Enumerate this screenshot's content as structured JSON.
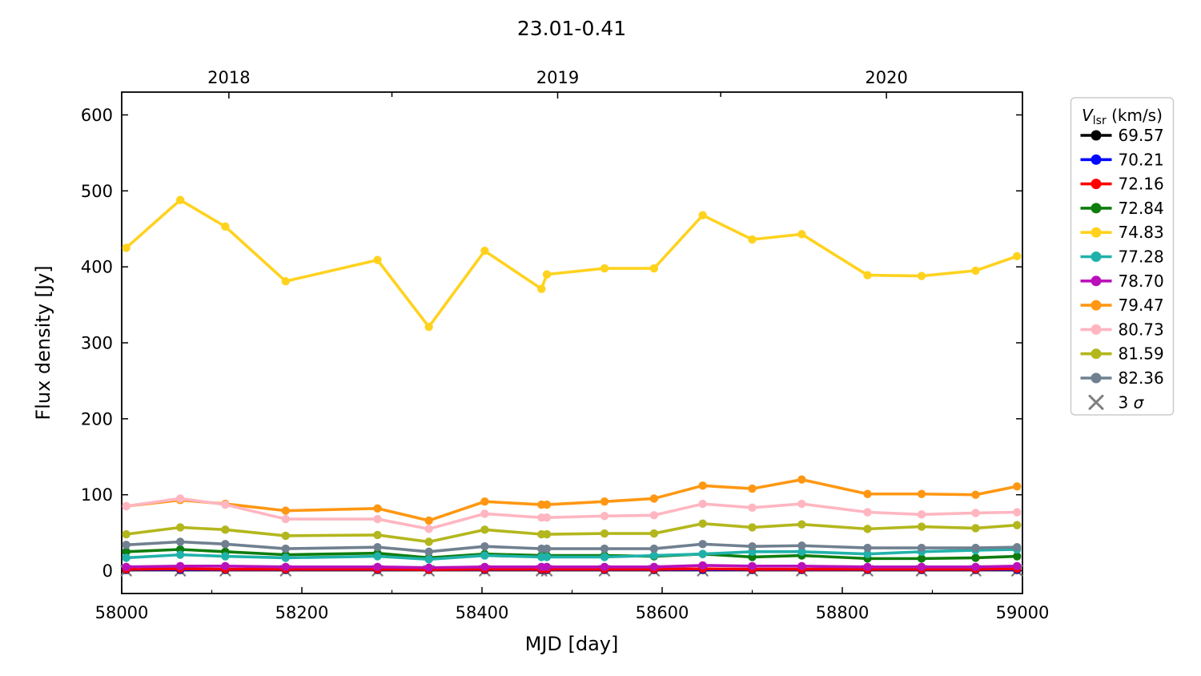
{
  "chart_data": {
    "type": "line",
    "title": "23.01-0.41",
    "xlabel": "MJD [day]",
    "ylabel": "Flux density [Jy]",
    "xlim": [
      58000,
      59000
    ],
    "ylim": [
      -30,
      630
    ],
    "grid": false,
    "x_major_ticks": [
      58000,
      58200,
      58400,
      58600,
      58800,
      59000
    ],
    "x_minor_ticks": [
      58100,
      58300,
      58500,
      58700,
      58900
    ],
    "y_major_ticks": [
      0,
      100,
      200,
      300,
      400,
      500,
      600
    ],
    "top_axis_ticks": [
      {
        "mjd": 58119,
        "label": "2018"
      },
      {
        "mjd": 58300,
        "label": ""
      },
      {
        "mjd": 58484,
        "label": "2019"
      },
      {
        "mjd": 58665,
        "label": ""
      },
      {
        "mjd": 58849,
        "label": "2020"
      }
    ],
    "legend": {
      "title_symbol": "V",
      "title_subscript": "lsr",
      "title_units": " (km/s)",
      "position": "outside-right"
    },
    "x": [
      58005,
      58065,
      58115,
      58182,
      58284,
      58341,
      58403,
      58466,
      58472,
      58536,
      58591,
      58645,
      58700,
      58755,
      58828,
      58888,
      58948,
      58994
    ],
    "series": [
      {
        "name": "69.57",
        "color": "#000000",
        "values": [
          1,
          1,
          1,
          1,
          1,
          1,
          1,
          1,
          1,
          1,
          1,
          1,
          1,
          1,
          1,
          1,
          1,
          1
        ]
      },
      {
        "name": "70.21",
        "color": "#0008ff",
        "values": [
          1.5,
          1.5,
          1.5,
          1.5,
          1.5,
          1.5,
          1.5,
          1.5,
          1.5,
          1.5,
          1.5,
          1.5,
          1.5,
          1.5,
          1.5,
          1.5,
          1.5,
          1.5
        ]
      },
      {
        "name": "72.16",
        "color": "#fe0000",
        "values": [
          2,
          2.5,
          2,
          2,
          2,
          1.5,
          2,
          2,
          2,
          2,
          2,
          2.5,
          2,
          2,
          2,
          2,
          2,
          2.5
        ]
      },
      {
        "name": "72.84",
        "color": "#0e7d0e",
        "values": [
          25,
          28,
          25,
          21,
          23,
          17,
          22,
          20,
          20,
          20,
          19,
          22,
          18,
          20,
          16,
          16,
          17,
          19
        ]
      },
      {
        "name": "74.83",
        "color": "#ffd21e",
        "values": [
          425,
          488,
          453,
          381,
          409,
          321,
          421,
          371,
          390,
          398,
          398,
          468,
          436,
          443,
          389,
          388,
          395,
          414
        ]
      },
      {
        "name": "77.28",
        "color": "#20b2aa",
        "values": [
          17,
          21,
          19,
          17,
          19,
          15,
          20,
          18,
          18,
          18,
          20,
          22,
          25,
          25,
          22,
          25,
          27,
          28
        ]
      },
      {
        "name": "78.70",
        "color": "#ba10ba",
        "values": [
          5,
          6,
          6,
          5,
          5,
          4,
          5,
          5,
          5,
          5,
          5,
          7,
          6,
          6,
          5,
          5,
          5,
          6
        ]
      },
      {
        "name": "79.47",
        "color": "#ff9712",
        "values": [
          85,
          93,
          88,
          79,
          82,
          66,
          91,
          87,
          87,
          91,
          95,
          112,
          108,
          120,
          101,
          101,
          100,
          111
        ]
      },
      {
        "name": "80.73",
        "color": "#ffb6c1",
        "values": [
          85,
          95,
          87,
          68,
          68,
          55,
          75,
          70,
          70,
          72,
          73,
          88,
          83,
          88,
          77,
          74,
          76,
          77
        ]
      },
      {
        "name": "81.59",
        "color": "#b3b71d",
        "values": [
          48,
          57,
          54,
          46,
          47,
          38,
          54,
          48,
          48,
          49,
          49,
          62,
          57,
          61,
          55,
          58,
          56,
          60
        ]
      },
      {
        "name": "82.36",
        "color": "#708090",
        "values": [
          34,
          38,
          35,
          29,
          31,
          25,
          32,
          29,
          29,
          29,
          29,
          35,
          32,
          33,
          30,
          30,
          30,
          31
        ]
      }
    ],
    "sigma_markers": {
      "label_prefix": "3 ",
      "label_symbol": "σ",
      "color": "#7f7f7f",
      "level": 0
    }
  }
}
